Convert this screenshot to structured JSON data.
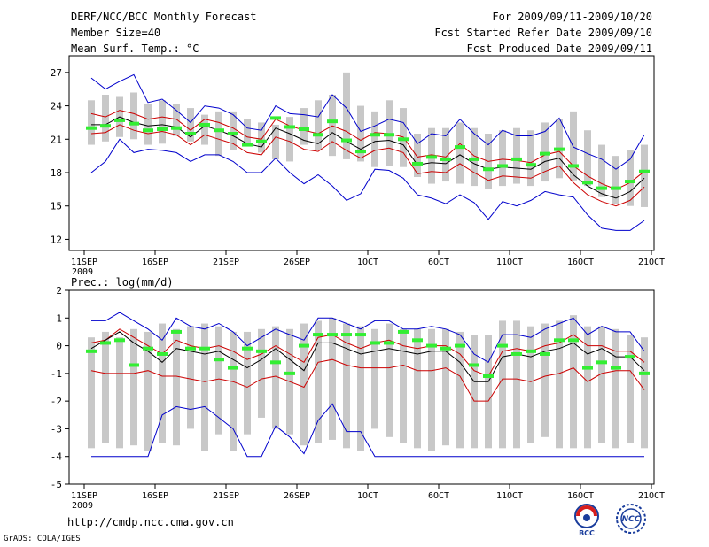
{
  "header": {
    "title": "DERF/NCC/BCC Monthly Forecast",
    "member_size": "Member Size=40",
    "var1": "Mean Surf. Temp.: °C",
    "period": "For 2009/09/11-2009/10/20",
    "fcst_started": "Fcst Started Refer Date 2009/09/10",
    "fcst_produced": "Fcst Produced Date 2009/09/11"
  },
  "footer": {
    "url": "http://cmdp.ncc.cma.gov.cn",
    "credit": "GrADS: COLA/IGES"
  },
  "logos": {
    "bcc": "BCC",
    "ncc": "NCC"
  },
  "colors": {
    "max_line": "#0000cc",
    "min_line": "#0000cc",
    "spread_line": "#cc0000",
    "mean_line": "#000000",
    "box": "#c8c8c8",
    "obs_mark": "#33ee33"
  },
  "chart_data": [
    {
      "type": "line",
      "title": "Mean Surf. Temp.: °C",
      "x_tick_labels": [
        "11SEP",
        "16SEP",
        "21SEP",
        "26SEP",
        "1OCT",
        "6OCT",
        "11OCT",
        "16OCT",
        "21OCT"
      ],
      "x_year_label": "2009",
      "x_tick_days": [
        0,
        5,
        10,
        15,
        20,
        25,
        30,
        35,
        40
      ],
      "ylim": [
        11,
        28.5
      ],
      "yticks": [
        12,
        15,
        18,
        21,
        24,
        27
      ],
      "box_low": [
        20.5,
        20.8,
        21.2,
        21.0,
        20.5,
        20.6,
        21.3,
        20.8,
        20.5,
        19.5,
        20.0,
        20.5,
        19.8,
        19.2,
        19.0,
        20.5,
        20.0,
        19.5,
        19.2,
        19.0,
        18.5,
        18.6,
        18.5,
        17.6,
        17.0,
        17.2,
        17.0,
        16.8,
        16.5,
        16.8,
        17.0,
        16.8,
        17.2,
        17.5,
        17.3,
        16.8,
        15.8,
        15.2,
        15.0,
        14.9
      ],
      "box_high": [
        24.5,
        25.0,
        24.8,
        25.2,
        24.2,
        24.5,
        24.2,
        23.8,
        23.2,
        23.5,
        23.5,
        22.8,
        22.5,
        22.3,
        23.0,
        23.8,
        24.5,
        25.0,
        27.0,
        24.0,
        23.5,
        24.5,
        23.8,
        21.5,
        22.0,
        22.0,
        22.5,
        22.0,
        21.5,
        21.8,
        22.0,
        21.8,
        22.5,
        22.8,
        23.5,
        21.8,
        20.5,
        19.5,
        20.0,
        20.5
      ],
      "series": [
        {
          "name": "max",
          "values": [
            26.5,
            25.5,
            26.2,
            26.8,
            24.3,
            24.6,
            23.6,
            22.5,
            24.0,
            23.8,
            23.2,
            22.0,
            21.8,
            24.0,
            23.3,
            23.2,
            23.0,
            25.0,
            23.8,
            21.7,
            22.2,
            22.8,
            22.5,
            20.6,
            21.5,
            21.3,
            22.8,
            21.5,
            20.5,
            21.8,
            21.3,
            21.3,
            21.7,
            22.9,
            20.3,
            19.7,
            19.2,
            18.3,
            19.2,
            21.4
          ]
        },
        {
          "name": "upper",
          "values": [
            23.3,
            23.0,
            23.6,
            23.3,
            22.8,
            23.0,
            22.8,
            21.8,
            22.8,
            22.5,
            22.0,
            21.2,
            21.0,
            22.8,
            22.2,
            21.8,
            21.5,
            22.2,
            21.7,
            20.9,
            21.6,
            21.5,
            21.2,
            19.4,
            19.6,
            19.4,
            20.6,
            19.5,
            19.0,
            19.2,
            19.1,
            18.9,
            19.6,
            19.9,
            18.6,
            17.7,
            17.0,
            16.5,
            17.1,
            18.1
          ]
        },
        {
          "name": "mean",
          "values": [
            22.3,
            22.3,
            23.0,
            22.5,
            22.2,
            22.3,
            22.1,
            21.2,
            22.2,
            21.8,
            21.3,
            20.6,
            20.3,
            22.0,
            21.5,
            20.9,
            20.6,
            21.6,
            20.8,
            20.1,
            20.8,
            20.9,
            20.5,
            18.7,
            18.9,
            18.8,
            19.6,
            18.8,
            18.3,
            18.5,
            18.4,
            18.3,
            19.0,
            19.3,
            17.8,
            16.8,
            16.1,
            15.7,
            16.3,
            17.5
          ]
        },
        {
          "name": "lower",
          "values": [
            21.5,
            21.6,
            22.3,
            21.8,
            21.5,
            21.7,
            21.4,
            20.5,
            21.4,
            21.0,
            20.6,
            19.8,
            19.6,
            21.2,
            20.8,
            20.1,
            19.9,
            20.8,
            20.0,
            19.3,
            20.0,
            20.2,
            19.8,
            17.9,
            18.1,
            18.0,
            18.8,
            18.0,
            17.3,
            17.7,
            17.6,
            17.5,
            18.1,
            18.6,
            17.1,
            16.0,
            15.4,
            15.0,
            15.5,
            16.7
          ]
        },
        {
          "name": "min",
          "values": [
            18.0,
            19.0,
            21.0,
            19.8,
            20.1,
            20.0,
            19.8,
            19.0,
            19.6,
            19.6,
            19.0,
            18.0,
            18.0,
            19.3,
            18.0,
            17.0,
            17.8,
            16.8,
            15.5,
            16.1,
            18.3,
            18.2,
            17.5,
            16.0,
            15.7,
            15.2,
            16.0,
            15.3,
            13.8,
            15.4,
            15.0,
            15.5,
            16.3,
            16.0,
            15.8,
            14.2,
            13.0,
            12.8,
            12.8,
            13.7
          ]
        },
        {
          "name": "obs",
          "values": [
            22.0,
            22.2,
            22.7,
            22.4,
            21.8,
            21.9,
            22.0,
            21.5,
            22.3,
            21.8,
            21.5,
            20.5,
            20.8,
            22.9,
            22.1,
            21.9,
            21.4,
            22.6,
            20.9,
            19.9,
            21.4,
            21.4,
            21.0,
            18.8,
            19.4,
            19.2,
            20.3,
            19.2,
            18.3,
            18.6,
            19.2,
            18.7,
            19.7,
            20.1,
            18.6,
            17.1,
            16.6,
            16.6,
            17.2,
            18.1
          ]
        }
      ]
    },
    {
      "type": "line",
      "title": "Prec.: log(mm/d)",
      "x_tick_labels": [
        "11SEP",
        "16SEP",
        "21SEP",
        "26SEP",
        "1OCT",
        "6OCT",
        "11OCT",
        "16OCT",
        "21OCT"
      ],
      "x_year_label": "2009",
      "x_tick_days": [
        0,
        5,
        10,
        15,
        20,
        25,
        30,
        35,
        40
      ],
      "ylim": [
        -5,
        2
      ],
      "yticks": [
        -5,
        -4,
        -3,
        -2,
        -1,
        0,
        1,
        2
      ],
      "box_low": [
        -3.7,
        -3.5,
        -3.7,
        -3.6,
        -3.8,
        -3.5,
        -3.6,
        -3.0,
        -3.8,
        -3.2,
        -3.8,
        -3.2,
        -2.6,
        -3.0,
        -3.2,
        -3.6,
        -3.5,
        -3.4,
        -3.7,
        -3.8,
        -3.0,
        -3.3,
        -3.5,
        -3.7,
        -3.8,
        -3.6,
        -3.7,
        -3.7,
        -3.7,
        -3.7,
        -3.7,
        -3.5,
        -3.3,
        -3.7,
        -3.7,
        -3.7,
        -3.5,
        -3.7,
        -3.5,
        -3.7
      ],
      "box_high": [
        0.3,
        0.5,
        0.3,
        0.6,
        0.5,
        0.8,
        0.6,
        0.7,
        0.8,
        0.7,
        0.5,
        0.5,
        0.6,
        0.7,
        0.6,
        0.8,
        0.9,
        1.0,
        0.8,
        0.7,
        0.6,
        0.8,
        0.6,
        0.6,
        0.6,
        0.6,
        0.5,
        0.4,
        0.4,
        0.9,
        0.9,
        0.7,
        0.8,
        0.9,
        1.1,
        0.7,
        0.7,
        0.6,
        0.4,
        0.3
      ],
      "series": [
        {
          "name": "max",
          "values": [
            0.9,
            0.9,
            1.2,
            0.9,
            0.6,
            0.2,
            1.0,
            0.7,
            0.6,
            0.8,
            0.5,
            0.0,
            0.3,
            0.6,
            0.4,
            0.2,
            1.0,
            1.0,
            0.8,
            0.6,
            0.9,
            0.9,
            0.6,
            0.6,
            0.7,
            0.6,
            0.4,
            -0.3,
            -0.6,
            0.4,
            0.4,
            0.3,
            0.6,
            0.8,
            1.0,
            0.4,
            0.7,
            0.5,
            0.5,
            -0.2
          ]
        },
        {
          "name": "upper",
          "values": [
            0.1,
            0.2,
            0.6,
            0.3,
            0.0,
            -0.3,
            0.2,
            0.0,
            -0.1,
            0.0,
            -0.2,
            -0.5,
            -0.3,
            0.0,
            -0.3,
            -0.6,
            0.3,
            0.4,
            0.1,
            -0.1,
            0.1,
            0.2,
            0.0,
            -0.1,
            0.0,
            0.0,
            -0.3,
            -0.9,
            -1.1,
            -0.2,
            -0.1,
            -0.2,
            0.0,
            0.1,
            0.4,
            0.0,
            0.0,
            -0.2,
            -0.2,
            -0.6
          ]
        },
        {
          "name": "mean",
          "values": [
            -0.1,
            0.2,
            0.5,
            0.1,
            -0.2,
            -0.6,
            -0.1,
            -0.2,
            -0.3,
            -0.2,
            -0.5,
            -0.8,
            -0.5,
            -0.1,
            -0.5,
            -0.9,
            0.1,
            0.1,
            -0.1,
            -0.3,
            -0.2,
            -0.1,
            -0.2,
            -0.3,
            -0.2,
            -0.2,
            -0.6,
            -1.3,
            -1.3,
            -0.4,
            -0.3,
            -0.4,
            -0.2,
            -0.1,
            0.1,
            -0.3,
            -0.1,
            -0.4,
            -0.4,
            -0.9
          ]
        },
        {
          "name": "lower",
          "values": [
            -0.9,
            -1.0,
            -1.0,
            -1.0,
            -0.9,
            -1.1,
            -1.1,
            -1.2,
            -1.3,
            -1.2,
            -1.3,
            -1.5,
            -1.2,
            -1.1,
            -1.3,
            -1.5,
            -0.6,
            -0.5,
            -0.7,
            -0.8,
            -0.8,
            -0.8,
            -0.7,
            -0.9,
            -0.9,
            -0.8,
            -1.1,
            -2.0,
            -2.0,
            -1.2,
            -1.2,
            -1.3,
            -1.1,
            -1.0,
            -0.8,
            -1.3,
            -1.0,
            -0.9,
            -0.9,
            -1.6
          ]
        },
        {
          "name": "min",
          "values": [
            -4.0,
            -4.0,
            -4.0,
            -4.0,
            -4.0,
            -2.5,
            -2.2,
            -2.3,
            -2.2,
            -2.6,
            -3.0,
            -4.0,
            -4.0,
            -2.9,
            -3.3,
            -3.9,
            -2.7,
            -2.1,
            -3.1,
            -3.1,
            -4.0,
            -4.0,
            -4.0,
            -4.0,
            -4.0,
            -4.0,
            -4.0,
            -4.0,
            -4.0,
            -4.0,
            -4.0,
            -4.0,
            -4.0,
            -4.0,
            -4.0,
            -4.0,
            -4.0,
            -4.0,
            -4.0,
            -4.0
          ]
        },
        {
          "name": "obs",
          "values": [
            -0.2,
            0.1,
            0.2,
            -0.7,
            -0.1,
            -0.3,
            0.5,
            -0.1,
            -0.1,
            -0.5,
            -0.8,
            -0.1,
            -0.2,
            -0.6,
            -1.0,
            0.0,
            0.4,
            0.4,
            0.4,
            0.4,
            0.1,
            0.1,
            0.5,
            0.2,
            0.0,
            -0.1,
            0.0,
            -0.7,
            -1.1,
            0.0,
            -0.3,
            -0.2,
            -0.3,
            0.2,
            0.2,
            -0.8,
            -0.6,
            -0.8,
            -0.4,
            -1.0
          ]
        }
      ]
    }
  ]
}
